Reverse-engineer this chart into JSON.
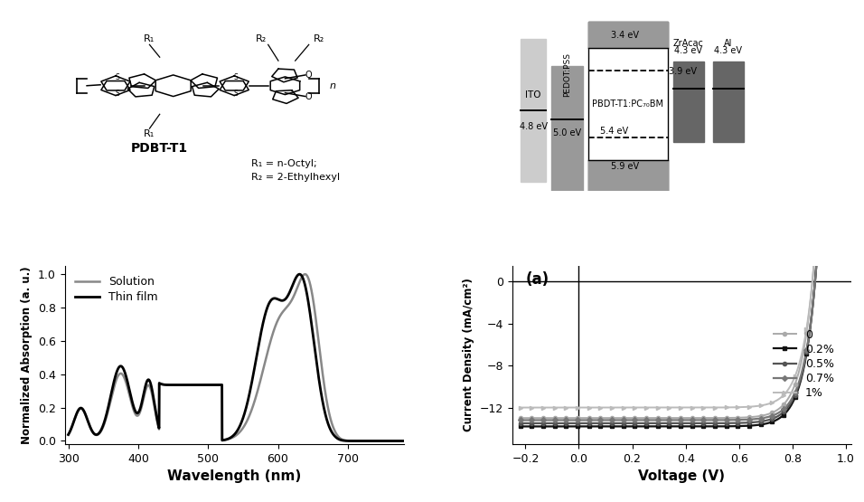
{
  "absorption": {
    "solution_color": "#888888",
    "thinfilm_color": "#000000",
    "solution_lw": 1.8,
    "thinfilm_lw": 2.0,
    "xlabel": "Wavelength (nm)",
    "ylabel": "Normalized Absorption (a. u.)",
    "xlim": [
      295,
      780
    ],
    "ylim": [
      -0.02,
      1.05
    ],
    "xticks": [
      300,
      400,
      500,
      600,
      700
    ],
    "yticks": [
      0.0,
      0.2,
      0.4,
      0.6,
      0.8,
      1.0
    ]
  },
  "jv_curves": {
    "xlabel": "Voltage (V)",
    "ylabel": "Current Density (mA/cm²)",
    "xlim": [
      -0.25,
      1.02
    ],
    "ylim": [
      -15.5,
      1.5
    ],
    "xticks": [
      -0.2,
      0.0,
      0.2,
      0.4,
      0.6,
      0.8,
      1.0
    ],
    "yticks": [
      0,
      -4,
      -8,
      -12
    ],
    "panel_label": "(a)",
    "series": [
      {
        "label": "0",
        "color": "#aaaaaa",
        "lw": 1.4,
        "marker": "o",
        "ms": 3.0,
        "jsc": -13.0,
        "voc": 0.875,
        "n": 1.8
      },
      {
        "label": "0.2%",
        "color": "#111111",
        "lw": 1.6,
        "marker": "s",
        "ms": 3.0,
        "jsc": -13.8,
        "voc": 0.885,
        "n": 1.8
      },
      {
        "label": "0.5%",
        "color": "#555555",
        "lw": 1.6,
        "marker": "o",
        "ms": 3.0,
        "jsc": -13.5,
        "voc": 0.885,
        "n": 1.8
      },
      {
        "label": "0.7%",
        "color": "#777777",
        "lw": 1.6,
        "marker": "D",
        "ms": 3.0,
        "jsc": -13.2,
        "voc": 0.885,
        "n": 1.8
      },
      {
        "label": "1%",
        "color": "#bbbbbb",
        "lw": 1.4,
        "marker": ">",
        "ms": 3.0,
        "jsc": -12.0,
        "voc": 0.875,
        "n": 1.8
      }
    ]
  },
  "energy": {
    "gray_light": "#cccccc",
    "gray_mid": "#999999",
    "gray_dark": "#666666",
    "white": "#ffffff"
  }
}
